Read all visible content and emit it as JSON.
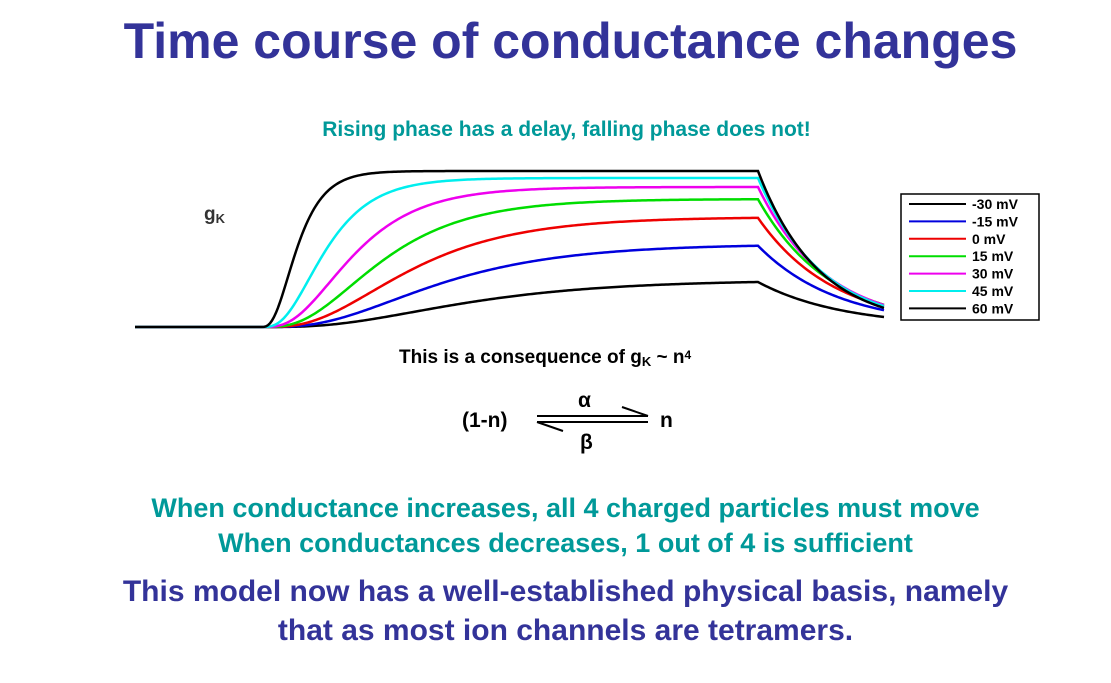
{
  "title": "Time course of conductance changes",
  "subtitle": "Rising phase has a delay, falling phase does not!",
  "chart_data": {
    "type": "line",
    "y_label": "g",
    "y_label_sub": "K",
    "series": [
      {
        "name": "-30 mV",
        "color": "#000000"
      },
      {
        "name": "-15 mV",
        "color": "#0000dd"
      },
      {
        "name": "0 mV",
        "color": "#ee0000"
      },
      {
        "name": "15 mV",
        "color": "#00dd00"
      },
      {
        "name": "30 mV",
        "color": "#ee00ee"
      },
      {
        "name": "45 mV",
        "color": "#00eeee"
      },
      {
        "name": "60 mV",
        "color": "#000000"
      }
    ]
  },
  "consequence": {
    "text": "This is a consequence of g",
    "sub": "K",
    "mid": " ~ n",
    "sup": "4"
  },
  "equation": {
    "left": "(1-n)",
    "right": "n",
    "forward": "α",
    "backward": "β"
  },
  "notes": [
    "When conductance increases, all 4 charged particles must move",
    "When conductances decreases, 1 out of 4 is sufficient"
  ],
  "conclusion": [
    "This model now has a well-established physical basis, namely",
    "that as most ion channels are tetramers."
  ]
}
